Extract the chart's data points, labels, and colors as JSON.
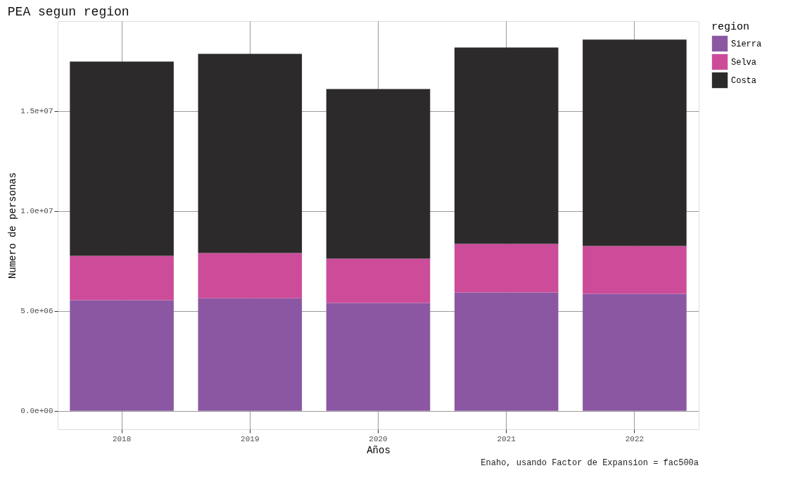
{
  "chart_data": {
    "type": "bar",
    "title": "PEA segun region",
    "xlabel": "Años",
    "ylabel": "Numero de personas",
    "legend_title": "region",
    "categories": [
      "2018",
      "2019",
      "2020",
      "2021",
      "2022"
    ],
    "stacked": true,
    "series": [
      {
        "name": "Sierra",
        "color": "#8b57a3",
        "values": [
          5530000,
          5630000,
          5390000,
          5920000,
          5850000
        ]
      },
      {
        "name": "Selva",
        "color": "#cc4c99",
        "values": [
          2220000,
          2260000,
          2220000,
          2430000,
          2390000
        ]
      },
      {
        "name": "Costa",
        "color": "#2d2a2b",
        "values": [
          9710000,
          9960000,
          8480000,
          9820000,
          10320000
        ]
      }
    ],
    "ylim": [
      -928000,
      19488000
    ],
    "yticks": [
      {
        "value": 0,
        "label": "0.0e+00"
      },
      {
        "value": 5000000,
        "label": "5.0e+06"
      },
      {
        "value": 10000000,
        "label": "1.0e+07"
      },
      {
        "value": 15000000,
        "label": "1.5e+07"
      }
    ],
    "grid": true,
    "legend": "right",
    "annotations": [
      "Enaho, usando Factor de Expansion = fac500a"
    ]
  }
}
